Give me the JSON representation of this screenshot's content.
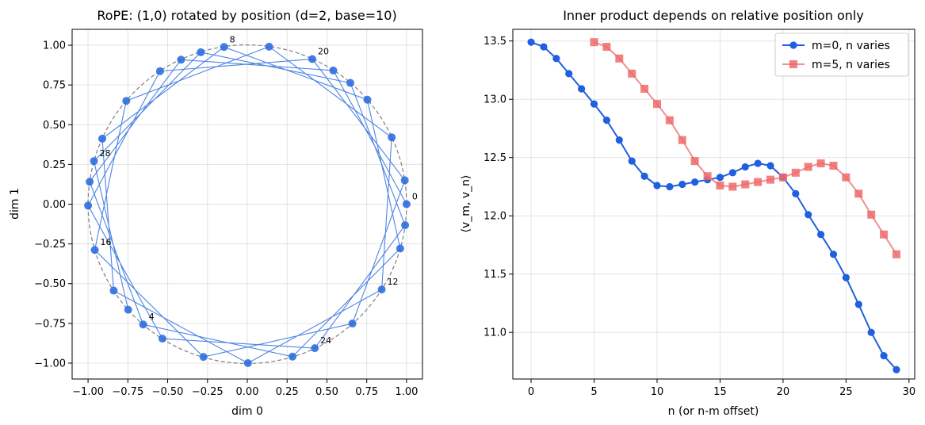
{
  "chart_data": [
    {
      "type": "scatter",
      "title": "RoPE: (1,0) rotated by position (d=2, base=10)",
      "xlabel": "dim 0",
      "ylabel": "dim 1",
      "xlim": [
        -1.1,
        1.1
      ],
      "ylim": [
        -1.1,
        1.1
      ],
      "xticks": [
        -1.0,
        -0.75,
        -0.5,
        -0.25,
        0.0,
        0.25,
        0.5,
        0.75,
        1.0
      ],
      "yticks": [
        -1.0,
        -0.75,
        -0.5,
        -0.25,
        0.0,
        0.25,
        0.5,
        0.75,
        1.0
      ],
      "xtick_labels": [
        "−1.00",
        "−0.75",
        "−0.50",
        "−0.25",
        "0.00",
        "0.25",
        "0.50",
        "0.75",
        "1.00"
      ],
      "ytick_labels": [
        "−1.00",
        "−0.75",
        "−0.50",
        "−0.25",
        "0.00",
        "0.25",
        "0.50",
        "0.75",
        "1.00"
      ],
      "grid": true,
      "unit_circle": true,
      "point_color": "#2f6fe0",
      "line_color": "#2f6fe0",
      "points": [
        {
          "x": 1.0,
          "y": 0.0
        },
        {
          "x": 0.54,
          "y": 0.841
        },
        {
          "x": -0.416,
          "y": 0.909
        },
        {
          "x": -0.99,
          "y": 0.141
        },
        {
          "x": -0.654,
          "y": -0.757
        },
        {
          "x": 0.284,
          "y": -0.959
        },
        {
          "x": 0.96,
          "y": -0.279
        },
        {
          "x": 0.754,
          "y": 0.657
        },
        {
          "x": -0.146,
          "y": 0.989
        },
        {
          "x": -0.911,
          "y": 0.412
        },
        {
          "x": -0.839,
          "y": -0.544
        },
        {
          "x": 0.004,
          "y": -1.0
        },
        {
          "x": 0.844,
          "y": -0.537
        },
        {
          "x": 0.907,
          "y": 0.42
        },
        {
          "x": 0.137,
          "y": 0.991
        },
        {
          "x": -0.76,
          "y": 0.65
        },
        {
          "x": -0.958,
          "y": -0.288
        },
        {
          "x": -0.275,
          "y": -0.961
        },
        {
          "x": 0.66,
          "y": -0.751
        },
        {
          "x": 0.989,
          "y": 0.15
        },
        {
          "x": 0.408,
          "y": 0.913
        },
        {
          "x": -0.548,
          "y": 0.837
        },
        {
          "x": -1.0,
          "y": -0.009
        },
        {
          "x": -0.533,
          "y": -0.846
        },
        {
          "x": 0.424,
          "y": -0.906
        },
        {
          "x": 0.991,
          "y": -0.132
        },
        {
          "x": 0.647,
          "y": 0.763
        },
        {
          "x": -0.292,
          "y": 0.956
        },
        {
          "x": -0.963,
          "y": 0.271
        },
        {
          "x": -0.748,
          "y": -0.664
        }
      ],
      "annotations": [
        {
          "text": "0",
          "index": 0
        },
        {
          "text": "4",
          "index": 4
        },
        {
          "text": "8",
          "index": 8
        },
        {
          "text": "12",
          "index": 12
        },
        {
          "text": "16",
          "index": 16
        },
        {
          "text": "20",
          "index": 20
        },
        {
          "text": "24",
          "index": 24
        },
        {
          "text": "28",
          "index": 28
        }
      ]
    },
    {
      "type": "line",
      "title": "Inner product depends on relative position only",
      "xlabel": "n (or n-m offset)",
      "ylabel": "⟨v_m, v_n⟩",
      "xlim": [
        -1.45,
        30.45
      ],
      "ylim": [
        10.6,
        13.6
      ],
      "xticks": [
        0,
        5,
        10,
        15,
        20,
        25,
        30
      ],
      "yticks": [
        11.0,
        11.5,
        12.0,
        12.5,
        13.0,
        13.5
      ],
      "xtick_labels": [
        "0",
        "5",
        "10",
        "15",
        "20",
        "25",
        "30"
      ],
      "ytick_labels": [
        "11.0",
        "11.5",
        "12.0",
        "12.5",
        "13.0",
        "13.5"
      ],
      "grid": true,
      "legend": "top-right",
      "series": [
        {
          "name": "m=0, n varies",
          "color": "#1f5fe0",
          "marker": "circle",
          "x": [
            0,
            1,
            2,
            3,
            4,
            5,
            6,
            7,
            8,
            9,
            10,
            11,
            12,
            13,
            14,
            15,
            16,
            17,
            18,
            19,
            20,
            21,
            22,
            23,
            24,
            25,
            26,
            27,
            28,
            29
          ],
          "values": [
            13.49,
            13.45,
            13.35,
            13.22,
            13.09,
            12.96,
            12.82,
            12.65,
            12.47,
            12.34,
            12.26,
            12.25,
            12.27,
            12.29,
            12.31,
            12.33,
            12.37,
            12.42,
            12.45,
            12.43,
            12.33,
            12.19,
            12.01,
            11.84,
            11.67,
            11.47,
            11.24,
            11.0,
            10.8,
            10.68
          ]
        },
        {
          "name": "m=5, n varies",
          "color": "#ee6a6a",
          "marker": "square",
          "x": [
            5,
            6,
            7,
            8,
            9,
            10,
            11,
            12,
            13,
            14,
            15,
            16,
            17,
            18,
            19,
            20,
            21,
            22,
            23,
            24,
            25,
            26,
            27,
            28,
            29
          ],
          "values": [
            13.49,
            13.45,
            13.35,
            13.22,
            13.09,
            12.96,
            12.82,
            12.65,
            12.47,
            12.34,
            12.26,
            12.25,
            12.27,
            12.29,
            12.31,
            12.33,
            12.37,
            12.42,
            12.45,
            12.43,
            12.33,
            12.19,
            12.01,
            11.84,
            11.67
          ]
        }
      ]
    }
  ]
}
